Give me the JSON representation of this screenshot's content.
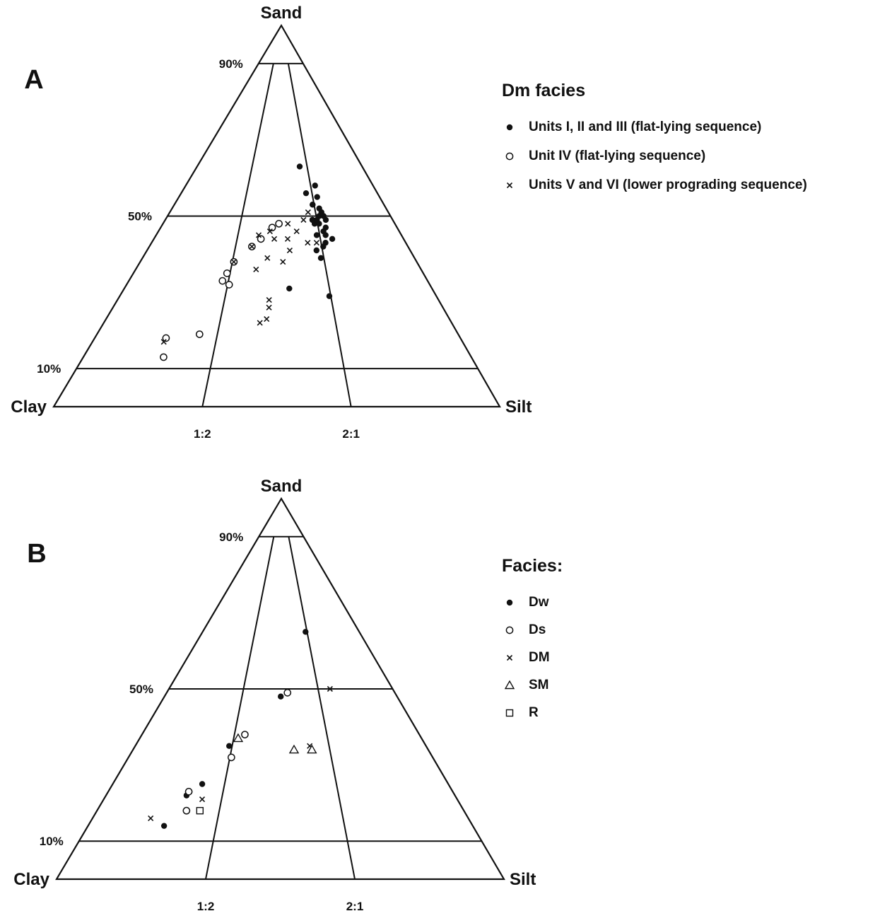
{
  "chart_data": [
    {
      "type": "scatter",
      "subtype": "ternary",
      "panel_letter": "A",
      "vertices": {
        "top": "Sand",
        "left": "Clay",
        "right": "Silt"
      },
      "sand_levels": [
        "90%",
        "50%",
        "10%"
      ],
      "silt_clay_ratios": [
        "1:2",
        "2:1"
      ],
      "legend_title": "Dm facies",
      "series": [
        {
          "name": "Units I, II and III (flat-lying sequence)",
          "marker": "filled-circle",
          "points": [
            [
              50,
              35,
              15
            ],
            [
              51,
              34,
              15
            ],
            [
              52,
              33,
              15
            ],
            [
              48,
              34,
              18
            ],
            [
              49,
              36,
              15
            ],
            [
              55,
              31,
              14
            ],
            [
              58,
              29,
              13
            ],
            [
              53,
              31,
              16
            ],
            [
              56,
              28,
              16
            ],
            [
              47,
              37,
              16
            ],
            [
              49,
              33,
              18
            ],
            [
              46,
              37,
              17
            ],
            [
              48,
              35,
              17
            ],
            [
              44,
              40,
              16
            ],
            [
              50,
              34,
              16
            ],
            [
              45,
              36,
              19
            ],
            [
              43,
              39,
              18
            ],
            [
              29,
              47,
              24
            ],
            [
              49,
              33,
              18
            ],
            [
              63,
              23,
              14
            ],
            [
              53,
              31,
              16
            ],
            [
              45,
              38,
              17
            ],
            [
              42,
              39,
              19
            ],
            [
              39,
              40,
              21
            ],
            [
              41,
              38,
              21
            ],
            [
              31,
              37,
              32
            ],
            [
              49,
              34,
              17
            ]
          ]
        },
        {
          "name": "Unit IV (flat-lying sequence)",
          "marker": "open-circle",
          "points": [
            [
              48,
              26,
              26
            ],
            [
              47,
              25,
              28
            ],
            [
              44,
              24,
              32
            ],
            [
              42,
              23,
              35
            ],
            [
              38,
              21,
              41
            ],
            [
              35,
              21,
              44
            ],
            [
              32,
              23,
              45
            ],
            [
              33,
              21,
              46
            ],
            [
              19,
              23,
              58
            ],
            [
              18,
              16,
              66
            ],
            [
              13,
              18,
              69
            ]
          ]
        },
        {
          "name": "Units V and VI (lower prograding sequence)",
          "marker": "cross",
          "points": [
            [
              51,
              31,
              18
            ],
            [
              49,
              31,
              20
            ],
            [
              46,
              31,
              23
            ],
            [
              48,
              28,
              24
            ],
            [
              44,
              30,
              26
            ],
            [
              44,
              27,
              29
            ],
            [
              39,
              28,
              33
            ],
            [
              36,
              27,
              37
            ],
            [
              42,
              23,
              35
            ],
            [
              43,
              35,
              22
            ],
            [
              43,
              37,
              20
            ],
            [
              41,
              32,
              27
            ],
            [
              38,
              32,
              30
            ],
            [
              46,
              25,
              29
            ],
            [
              45,
              23,
              32
            ],
            [
              28,
              34,
              38
            ],
            [
              26,
              35,
              39
            ],
            [
              23,
              36,
              41
            ],
            [
              22,
              35,
              43
            ],
            [
              38,
              21,
              41
            ],
            [
              17,
              16,
              67
            ]
          ]
        }
      ]
    },
    {
      "type": "scatter",
      "subtype": "ternary",
      "panel_letter": "B",
      "vertices": {
        "top": "Sand",
        "left": "Clay",
        "right": "Silt"
      },
      "sand_levels": [
        "90%",
        "50%",
        "10%"
      ],
      "silt_clay_ratios": [
        "1:2",
        "2:1"
      ],
      "legend_title": "Facies:",
      "series": [
        {
          "name": "Dw",
          "marker": "filled-circle",
          "points": [
            [
              65,
              23,
              12
            ],
            [
              48,
              26,
              26
            ],
            [
              35,
              21,
              44
            ],
            [
              25,
              20,
              55
            ],
            [
              22,
              18,
              60
            ],
            [
              14,
              17,
              69
            ]
          ]
        },
        {
          "name": "Ds",
          "marker": "open-circle",
          "points": [
            [
              49,
              27,
              24
            ],
            [
              38,
              23,
              39
            ],
            [
              32,
              23,
              45
            ],
            [
              23,
              18,
              59
            ],
            [
              18,
              20,
              62
            ]
          ]
        },
        {
          "name": "DM",
          "marker": "cross",
          "points": [
            [
              50,
              36,
              14
            ],
            [
              35,
              39,
              26
            ],
            [
              21,
              22,
              57
            ],
            [
              16,
              13,
              71
            ]
          ]
        },
        {
          "name": "SM",
          "marker": "open-triangle",
          "points": [
            [
              37,
              22,
              41
            ],
            [
              34,
              40,
              26
            ],
            [
              34,
              36,
              30
            ]
          ]
        },
        {
          "name": "R",
          "marker": "open-square",
          "points": [
            [
              18,
              23,
              59
            ]
          ]
        }
      ]
    }
  ]
}
